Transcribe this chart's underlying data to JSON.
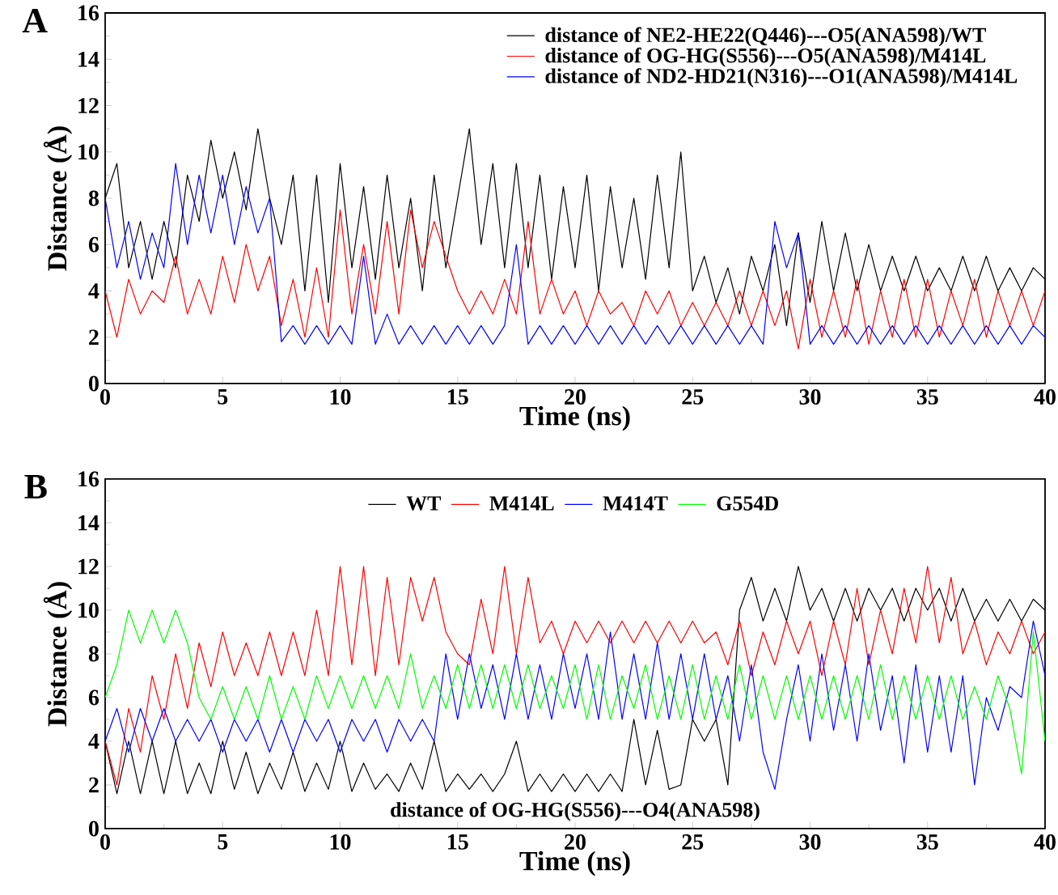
{
  "chart_data": [
    {
      "type": "line",
      "title": "A",
      "xlabel": "Time (ns)",
      "ylabel": "Distance (Å)",
      "xlim": [
        0,
        40
      ],
      "ylim": [
        0,
        16
      ],
      "xticks": [
        0,
        5,
        10,
        15,
        20,
        25,
        30,
        35,
        40
      ],
      "yticks": [
        0,
        2,
        4,
        6,
        8,
        10,
        12,
        14,
        16
      ],
      "legend": "top right",
      "grid": false,
      "marker": "none",
      "line_style": "solid",
      "x": [
        0,
        0.5,
        1,
        1.5,
        2,
        2.5,
        3,
        3.5,
        4,
        4.5,
        5,
        5.5,
        6,
        6.5,
        7,
        7.5,
        8,
        8.5,
        9,
        9.5,
        10,
        10.5,
        11,
        11.5,
        12,
        12.5,
        13,
        13.5,
        14,
        14.5,
        15,
        15.5,
        16,
        16.5,
        17,
        17.5,
        18,
        18.5,
        19,
        19.5,
        20,
        20.5,
        21,
        21.5,
        22,
        22.5,
        23,
        23.5,
        24,
        24.5,
        25,
        25.5,
        26,
        26.5,
        27,
        27.5,
        28,
        28.5,
        29,
        29.5,
        30,
        30.5,
        31,
        31.5,
        32,
        32.5,
        33,
        33.5,
        34,
        34.5,
        35,
        35.5,
        36,
        36.5,
        37,
        37.5,
        38,
        38.5,
        39,
        39.5,
        40
      ],
      "series": [
        {
          "name": "distance of NE2-HE22(Q446)---O5(ANA598)/WT",
          "color": "#000000",
          "values": [
            8,
            9.5,
            5,
            7,
            4.5,
            7,
            5,
            9,
            7,
            10.5,
            8,
            10,
            7.5,
            11,
            8,
            6,
            9,
            4,
            9,
            3.5,
            9.5,
            5,
            8.5,
            4.5,
            9,
            5,
            8,
            4,
            9,
            5,
            8,
            11,
            6,
            9.5,
            5,
            9.5,
            5,
            9,
            4.5,
            8.5,
            5,
            9,
            4,
            8.5,
            5,
            8,
            4.5,
            9,
            5,
            10,
            4,
            5.5,
            3.5,
            5,
            3,
            5.5,
            4,
            6,
            2.5,
            6.5,
            3.5,
            7,
            4,
            6.5,
            4,
            6,
            4,
            5.5,
            4,
            5.5,
            4,
            5,
            4,
            5.5,
            4,
            5.5,
            4,
            5,
            4,
            5,
            4.5
          ]
        },
        {
          "name": "distance of OG-HG(S556)---O5(ANA598)/M414L",
          "color": "#ff0000",
          "values": [
            4,
            2,
            4.5,
            3,
            4,
            3.5,
            5.5,
            3,
            4.5,
            3,
            5.5,
            3.5,
            6,
            4,
            5.5,
            2.5,
            4.5,
            2,
            5,
            2,
            7.5,
            3,
            6,
            3,
            7,
            3,
            7.5,
            5,
            7,
            5.5,
            4,
            3,
            4,
            3,
            4.5,
            3,
            7,
            3,
            4.5,
            3,
            4,
            2.5,
            4,
            3,
            3.5,
            2.5,
            4,
            3,
            4,
            2.5,
            3.5,
            2.5,
            3.5,
            2.5,
            4,
            2.5,
            4,
            2.5,
            4,
            1.5,
            4.5,
            2,
            4,
            2,
            4.5,
            1.7,
            4,
            2,
            4.5,
            2,
            4.5,
            2,
            4,
            2.5,
            4.5,
            2,
            4,
            2.5,
            4,
            2.5,
            4
          ]
        },
        {
          "name": "distance of ND2-HD21(N316)---O1(ANA598)/M414L",
          "color": "#0000ff",
          "values": [
            8,
            5,
            7,
            4.5,
            6.5,
            5,
            9.5,
            6,
            9,
            6.5,
            9,
            6,
            8.5,
            6.5,
            8,
            1.8,
            2.5,
            1.7,
            2.5,
            1.7,
            2.5,
            1.7,
            5.5,
            1.7,
            3,
            1.7,
            2.5,
            1.7,
            2.5,
            1.7,
            2.5,
            1.7,
            2.5,
            1.7,
            2.5,
            6,
            1.7,
            2.5,
            1.7,
            2.5,
            1.7,
            2.5,
            1.7,
            2.5,
            1.7,
            2.5,
            1.7,
            2.5,
            1.7,
            2.5,
            1.7,
            2.5,
            1.7,
            2.5,
            1.7,
            2.5,
            1.7,
            7,
            5,
            6.5,
            1.7,
            2.5,
            1.7,
            2.5,
            1.7,
            2.5,
            1.7,
            2.5,
            1.7,
            2.5,
            1.7,
            2.5,
            1.7,
            2.5,
            1.7,
            2.5,
            1.7,
            2.5,
            1.7,
            2.5,
            2
          ]
        }
      ]
    },
    {
      "type": "line",
      "title": "B",
      "xlabel": "Time (ns)",
      "ylabel": "Distance (Å)",
      "xlim": [
        0,
        40
      ],
      "ylim": [
        0,
        16
      ],
      "xticks": [
        0,
        5,
        10,
        15,
        20,
        25,
        30,
        35,
        40
      ],
      "yticks": [
        0,
        2,
        4,
        6,
        8,
        10,
        12,
        14,
        16
      ],
      "legend": "top",
      "grid": false,
      "marker": "none",
      "line_style": "solid",
      "annotations": [
        "distance of OG-HG(S556)---O4(ANA598)"
      ],
      "x": [
        0,
        0.5,
        1,
        1.5,
        2,
        2.5,
        3,
        3.5,
        4,
        4.5,
        5,
        5.5,
        6,
        6.5,
        7,
        7.5,
        8,
        8.5,
        9,
        9.5,
        10,
        10.5,
        11,
        11.5,
        12,
        12.5,
        13,
        13.5,
        14,
        14.5,
        15,
        15.5,
        16,
        16.5,
        17,
        17.5,
        18,
        18.5,
        19,
        19.5,
        20,
        20.5,
        21,
        21.5,
        22,
        22.5,
        23,
        23.5,
        24,
        24.5,
        25,
        25.5,
        26,
        26.5,
        27,
        27.5,
        28,
        28.5,
        29,
        29.5,
        30,
        30.5,
        31,
        31.5,
        32,
        32.5,
        33,
        33.5,
        34,
        34.5,
        35,
        35.5,
        36,
        36.5,
        37,
        37.5,
        38,
        38.5,
        39,
        39.5,
        40
      ],
      "series": [
        {
          "name": "WT",
          "color": "#000000",
          "values": [
            4,
            1.6,
            4,
            1.6,
            4,
            1.6,
            4,
            1.6,
            3,
            1.6,
            4,
            1.8,
            3.5,
            1.6,
            3,
            1.8,
            3.5,
            1.7,
            3,
            1.8,
            4,
            1.7,
            3,
            1.8,
            2.5,
            1.7,
            3,
            1.8,
            4,
            1.7,
            2.5,
            1.8,
            2.5,
            1.7,
            2.5,
            4,
            1.7,
            2.5,
            1.7,
            2.5,
            1.7,
            2.5,
            1.7,
            2.5,
            1.7,
            5,
            2,
            4.5,
            1.8,
            2,
            5,
            4,
            5,
            2,
            10,
            11.5,
            9.5,
            11,
            9.5,
            12,
            10,
            11,
            9.5,
            11,
            9.5,
            11,
            10,
            11,
            9.5,
            11,
            10,
            11,
            9.5,
            11,
            9.5,
            10.5,
            9.5,
            10.5,
            9.5,
            10.5,
            10
          ]
        },
        {
          "name": "M414L",
          "color": "#ff0000",
          "values": [
            4,
            2,
            5.5,
            3.5,
            7,
            5,
            8,
            5.5,
            8.5,
            6.5,
            9,
            7,
            8.5,
            7,
            9,
            7,
            9,
            7,
            10,
            7,
            12,
            7.5,
            12,
            7,
            11.5,
            7.5,
            11.5,
            9.5,
            11.5,
            9,
            8,
            7.5,
            10.5,
            8,
            12,
            8,
            11.5,
            8.5,
            9.5,
            8,
            9.5,
            8.5,
            9.5,
            8.5,
            9.5,
            8.5,
            9.5,
            8.5,
            9.5,
            8.5,
            9.5,
            8.5,
            9,
            7.5,
            9.5,
            7,
            9,
            7.5,
            9.5,
            8,
            9.5,
            7,
            9.5,
            7.5,
            11,
            7.5,
            10,
            8,
            11,
            8.5,
            12,
            8.5,
            11.5,
            8,
            9.5,
            7.5,
            9,
            8,
            9.5,
            8,
            9
          ]
        },
        {
          "name": "M414T",
          "color": "#0000ff",
          "values": [
            4,
            5.5,
            3.5,
            5.5,
            4,
            5.5,
            4,
            5,
            4,
            5,
            3.5,
            5,
            4,
            5,
            3.5,
            5,
            3.5,
            5,
            4,
            5,
            3.5,
            5,
            4,
            5,
            3.5,
            5,
            4,
            5,
            4,
            8,
            5,
            8,
            5.5,
            7.5,
            5,
            8,
            5,
            7.5,
            5,
            8,
            5.5,
            8,
            5,
            9,
            5,
            8,
            5,
            8.5,
            5,
            8,
            5,
            8,
            5,
            7,
            4,
            7.5,
            3.5,
            1.8,
            5,
            7.5,
            4,
            8,
            4.5,
            7.5,
            4,
            8,
            4.5,
            7,
            3,
            7.5,
            3.5,
            7,
            3.5,
            7,
            2,
            6,
            4.5,
            6.5,
            6,
            9.5,
            7
          ]
        },
        {
          "name": "G554D",
          "color": "#00ff00",
          "values": [
            6,
            7.5,
            10,
            8.5,
            10,
            8.5,
            10,
            8.5,
            6,
            5,
            6.5,
            5,
            6.5,
            5,
            7,
            5,
            6.5,
            5,
            7,
            5.5,
            7,
            5.5,
            7,
            5.5,
            7,
            5.5,
            8,
            5.5,
            7,
            5.5,
            7.5,
            5.5,
            7.5,
            5.5,
            7.5,
            5.5,
            7.5,
            5.5,
            7,
            5.5,
            7.5,
            5,
            7.5,
            5,
            7,
            5.5,
            7.5,
            5,
            7,
            5,
            7.5,
            5,
            7,
            5,
            7.5,
            5,
            7,
            5,
            7,
            5,
            7,
            5,
            7,
            5,
            7,
            5,
            7.5,
            5,
            7,
            5,
            7,
            5,
            7,
            5,
            6.5,
            5,
            7,
            5.5,
            2.5,
            9,
            4
          ]
        }
      ]
    }
  ]
}
